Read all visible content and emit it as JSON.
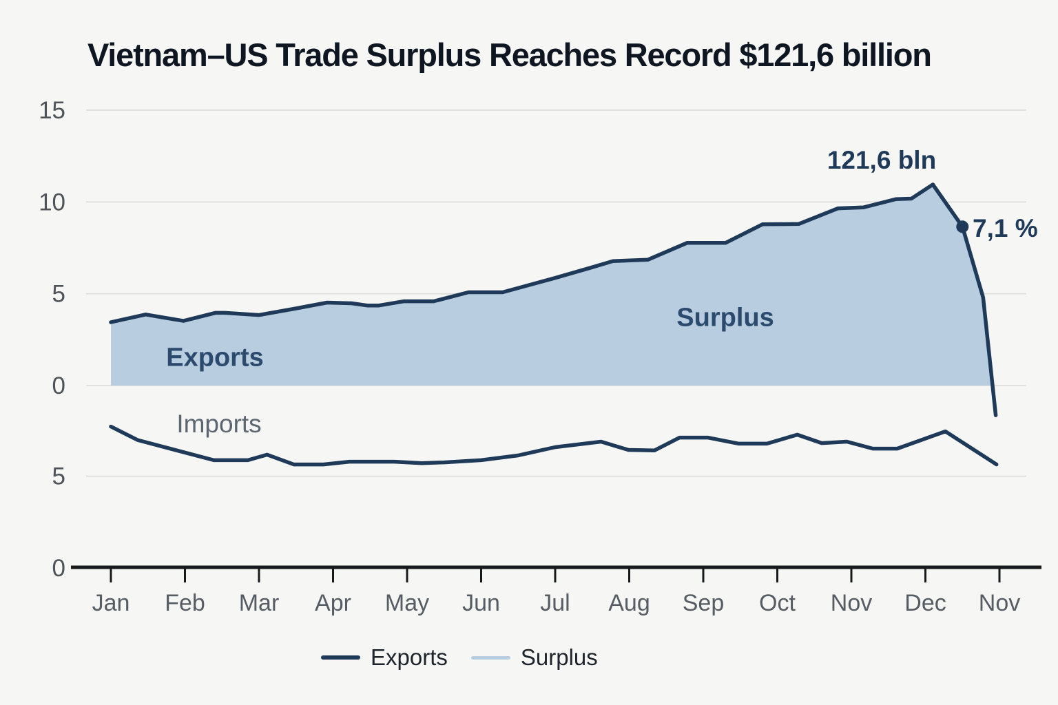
{
  "title": "Vietnam–US Trade Surplus Reaches Record $121,6 billion",
  "chart_data": {
    "type": "area",
    "title": "Vietnam–US Trade Surplus Reaches Record $121,6 billion",
    "x_labels": [
      "Jan",
      "Feb",
      "Mar",
      "Apr",
      "May",
      "Jun",
      "Jul",
      "Aug",
      "Sep",
      "Oct",
      "Nov",
      "Dec",
      "Nov"
    ],
    "upper_axis": {
      "ticks": [
        15,
        10,
        5,
        0
      ],
      "range": [
        0,
        15
      ],
      "grid": true
    },
    "lower_axis": {
      "ticks": [
        5,
        0
      ],
      "grid_ticks": [
        5
      ],
      "range": [
        0,
        10
      ],
      "grid": true
    },
    "series": [
      {
        "name": "Exports",
        "axis": "upper",
        "color": "#1e3a58",
        "points": [
          [
            0,
            3.45
          ],
          [
            0.47,
            3.87
          ],
          [
            0.98,
            3.52
          ],
          [
            1.41,
            3.96
          ],
          [
            1.54,
            3.96
          ],
          [
            2.0,
            3.84
          ],
          [
            2.5,
            4.2
          ],
          [
            2.92,
            4.52
          ],
          [
            3.25,
            4.48
          ],
          [
            3.46,
            4.36
          ],
          [
            3.62,
            4.36
          ],
          [
            3.96,
            4.59
          ],
          [
            4.36,
            4.59
          ],
          [
            4.83,
            5.08
          ],
          [
            5.29,
            5.08
          ],
          [
            6.0,
            5.86
          ],
          [
            6.5,
            6.44
          ],
          [
            6.78,
            6.78
          ],
          [
            7.25,
            6.85
          ],
          [
            7.78,
            7.77
          ],
          [
            8.3,
            7.77
          ],
          [
            8.8,
            8.78
          ],
          [
            9.29,
            8.8
          ],
          [
            9.82,
            9.65
          ],
          [
            10.16,
            9.7
          ],
          [
            10.6,
            10.15
          ],
          [
            10.81,
            10.18
          ],
          [
            11.1,
            10.95
          ],
          [
            11.5,
            8.65
          ],
          [
            11.78,
            4.8
          ],
          [
            11.95,
            -1.62
          ]
        ]
      },
      {
        "name": "Imports",
        "axis": "lower",
        "color": "#1e3a58",
        "points": [
          [
            0,
            7.7
          ],
          [
            0.36,
            6.97
          ],
          [
            1.39,
            5.87
          ],
          [
            1.85,
            5.87
          ],
          [
            2.11,
            6.17
          ],
          [
            2.47,
            5.64
          ],
          [
            2.87,
            5.64
          ],
          [
            3.22,
            5.79
          ],
          [
            3.83,
            5.79
          ],
          [
            4.2,
            5.71
          ],
          [
            4.5,
            5.75
          ],
          [
            5.0,
            5.87
          ],
          [
            5.5,
            6.13
          ],
          [
            6.0,
            6.58
          ],
          [
            6.62,
            6.88
          ],
          [
            6.99,
            6.43
          ],
          [
            7.34,
            6.4
          ],
          [
            7.68,
            7.1
          ],
          [
            8.06,
            7.1
          ],
          [
            8.48,
            6.77
          ],
          [
            8.86,
            6.77
          ],
          [
            9.27,
            7.26
          ],
          [
            9.6,
            6.8
          ],
          [
            9.94,
            6.88
          ],
          [
            10.29,
            6.5
          ],
          [
            10.62,
            6.5
          ],
          [
            11.27,
            7.44
          ],
          [
            11.96,
            5.64
          ]
        ]
      },
      {
        "name": "Surplus",
        "type": "area-fill-under-exports",
        "color": "#b8cde0"
      }
    ],
    "annotations": [
      {
        "id": "peak-label",
        "text": "121,6 bln"
      },
      {
        "id": "rate-label",
        "text": "7,1 %",
        "point_month": 11.5,
        "point_value": 8.65,
        "marker_color": "#1e3a58"
      }
    ],
    "area_labels": {
      "exports": "Exports",
      "surplus": "Surplus",
      "imports": "Imports"
    },
    "grid_color": "#dbdbd9",
    "axis_line_color": "#17191c",
    "y_label_color": "#4d5358",
    "x_label_color": "#565c63"
  },
  "legend": {
    "items": [
      {
        "label": "Exports",
        "color": "#1e3a58",
        "height": 6
      },
      {
        "label": "Surplus",
        "color": "#b8cde0",
        "height": 5
      }
    ]
  }
}
